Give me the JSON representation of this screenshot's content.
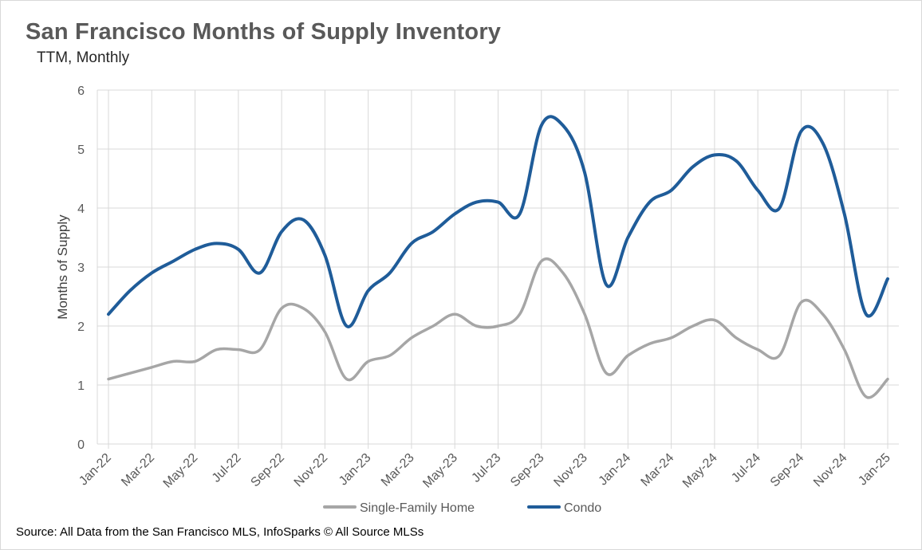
{
  "chart_data": {
    "type": "line",
    "title": "San Francisco  Months of Supply Inventory",
    "subtitle": "TTM, Monthly",
    "xlabel": "",
    "ylabel": "Months of Supply",
    "ylim": [
      0,
      6
    ],
    "yticks": [
      "0",
      "1",
      "2",
      "3",
      "4",
      "5",
      "6"
    ],
    "grid": true,
    "legend_position": "bottom",
    "categories": [
      "Jan-22",
      "Feb-22",
      "Mar-22",
      "Apr-22",
      "May-22",
      "Jun-22",
      "Jul-22",
      "Aug-22",
      "Sep-22",
      "Oct-22",
      "Nov-22",
      "Dec-22",
      "Jan-23",
      "Feb-23",
      "Mar-23",
      "Apr-23",
      "May-23",
      "Jun-23",
      "Jul-23",
      "Aug-23",
      "Sep-23",
      "Oct-23",
      "Nov-23",
      "Dec-23",
      "Jan-24",
      "Feb-24",
      "Mar-24",
      "Apr-24",
      "May-24",
      "Jun-24",
      "Jul-24",
      "Aug-24",
      "Sep-24",
      "Oct-24",
      "Nov-24",
      "Dec-24",
      "Jan-25"
    ],
    "tick_labels": [
      "Jan-22",
      "Mar-22",
      "May-22",
      "Jul-22",
      "Sep-22",
      "Nov-22",
      "Jan-23",
      "Mar-23",
      "May-23",
      "Jul-23",
      "Sep-23",
      "Nov-23",
      "Jan-24",
      "Mar-24",
      "May-24",
      "Jul-24",
      "Sep-24",
      "Nov-24",
      "Jan-25"
    ],
    "series": [
      {
        "name": "Single-Family Home",
        "color": "#a6a6a6",
        "values": [
          1.1,
          1.2,
          1.3,
          1.4,
          1.4,
          1.6,
          1.6,
          1.6,
          2.3,
          2.3,
          1.9,
          1.1,
          1.4,
          1.5,
          1.8,
          2.0,
          2.2,
          2.0,
          2.0,
          2.2,
          3.1,
          2.9,
          2.2,
          1.2,
          1.5,
          1.7,
          1.8,
          2.0,
          2.1,
          1.8,
          1.6,
          1.5,
          2.4,
          2.2,
          1.6,
          0.8,
          1.1
        ]
      },
      {
        "name": "Condo",
        "color": "#1f5c99",
        "values": [
          2.2,
          2.6,
          2.9,
          3.1,
          3.3,
          3.4,
          3.3,
          2.9,
          3.6,
          3.8,
          3.2,
          2.0,
          2.6,
          2.9,
          3.4,
          3.6,
          3.9,
          4.1,
          4.1,
          3.9,
          5.4,
          5.4,
          4.6,
          2.7,
          3.5,
          4.1,
          4.3,
          4.7,
          4.9,
          4.8,
          4.3,
          4.0,
          5.3,
          5.1,
          3.9,
          2.2,
          2.8
        ]
      }
    ]
  },
  "source": "Source: All Data from the San Francisco MLS, InfoSparks © All Source MLSs"
}
